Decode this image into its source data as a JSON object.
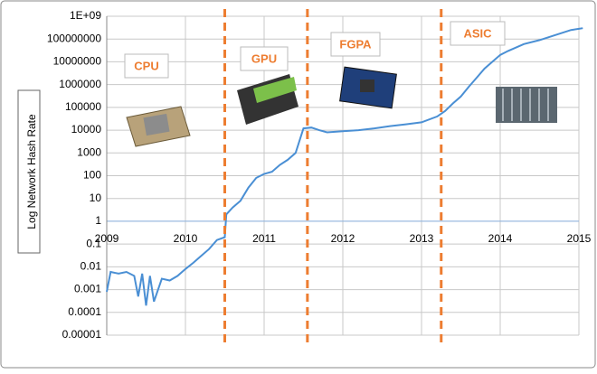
{
  "chart_data": {
    "type": "line",
    "y_label": "Log Network Hash Rate",
    "log_y": true,
    "grid": true,
    "color": "#4a8fd4",
    "divider_color": "#ed7d31",
    "axis_crosses_at": 1,
    "annotations": [
      "CPU",
      "GPU",
      "FGPA",
      "ASIC"
    ],
    "dividers": [
      2010.5,
      2011.55,
      2013.25
    ],
    "x": [
      2009.0,
      2009.05,
      2009.15,
      2009.25,
      2009.35,
      2009.4,
      2009.45,
      2009.5,
      2009.55,
      2009.6,
      2009.7,
      2009.8,
      2009.9,
      2010.0,
      2010.1,
      2010.2,
      2010.3,
      2010.4,
      2010.5,
      2010.52,
      2010.6,
      2010.7,
      2010.8,
      2010.9,
      2011.0,
      2011.1,
      2011.2,
      2011.3,
      2011.4,
      2011.5,
      2011.6,
      2011.7,
      2011.8,
      2012.0,
      2012.2,
      2012.4,
      2012.6,
      2012.8,
      2013.0,
      2013.2,
      2013.3,
      2013.4,
      2013.5,
      2013.6,
      2013.7,
      2013.8,
      2013.9,
      2014.0,
      2014.1,
      2014.3,
      2014.5,
      2014.7,
      2014.9,
      2015.0,
      2015.05
    ],
    "values": [
      0.0008,
      0.006,
      0.005,
      0.006,
      0.004,
      0.0005,
      0.005,
      0.0002,
      0.004,
      0.0003,
      0.003,
      0.0025,
      0.004,
      0.008,
      0.015,
      0.03,
      0.06,
      0.15,
      0.2,
      2,
      4,
      8,
      30,
      80,
      120,
      150,
      300,
      500,
      1000,
      12000,
      13000,
      10000,
      8000,
      9000,
      10000,
      12000,
      15000,
      18000,
      22000,
      40000,
      70000,
      150000,
      300000,
      800000,
      2000000,
      5000000,
      10000000,
      20000000,
      30000000,
      60000000,
      90000000,
      150000000,
      250000000,
      280000000,
      300000000
    ],
    "xlim": [
      2009,
      2015
    ],
    "xticks": [
      2009,
      2010,
      2011,
      2012,
      2013,
      2014,
      2015
    ],
    "ylim": [
      1e-05,
      1000000000
    ],
    "yticks": [
      {
        "value": 1000000000,
        "label": "1E+09"
      },
      100000000,
      10000000,
      1000000,
      100000,
      10000,
      1000,
      100,
      10,
      1,
      0.1,
      0.01,
      0.001,
      0.0001,
      1e-05
    ]
  }
}
